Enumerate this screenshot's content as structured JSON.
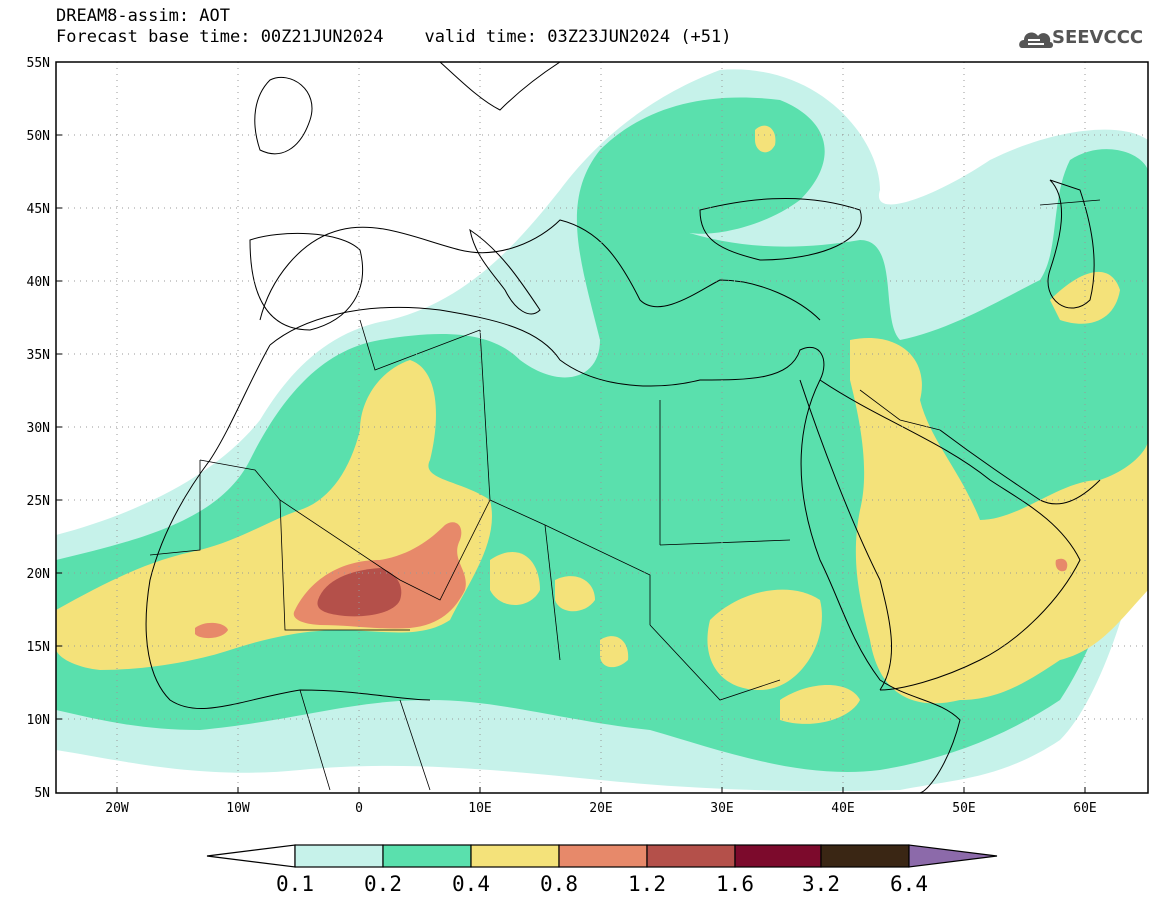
{
  "header": {
    "title_line1": "DREAM8-assim: AOT",
    "title_line2": "Forecast base time: 00Z21JUN2024    valid time: 03Z23JUN2024 (+51)",
    "logo_text": "SEEVCCC",
    "logo_icon": "cloud-icon"
  },
  "map": {
    "projection": "cylindrical",
    "lon_range": [
      -25,
      65
    ],
    "lat_range": [
      5,
      55
    ],
    "lat_ticks": [
      "5N",
      "10N",
      "15N",
      "20N",
      "25N",
      "30N",
      "35N",
      "40N",
      "45N",
      "50N",
      "55N"
    ],
    "lon_ticks": [
      "20W",
      "10W",
      "0",
      "10E",
      "20E",
      "30E",
      "40E",
      "50E",
      "60E"
    ],
    "grid": "dotted"
  },
  "colorbar": {
    "labels": [
      "0.1",
      "0.2",
      "0.4",
      "0.8",
      "1.2",
      "1.6",
      "3.2",
      "6.4"
    ],
    "colors": {
      "below": "#ffffff",
      "c1": "#c6f2ea",
      "c2": "#5ae0ad",
      "c3": "#f4e27a",
      "c4": "#e7896a",
      "c5": "#b4504a",
      "c6": "#7c0a2c",
      "c7": "#3a2614",
      "above": "#8c6aaa"
    }
  }
}
